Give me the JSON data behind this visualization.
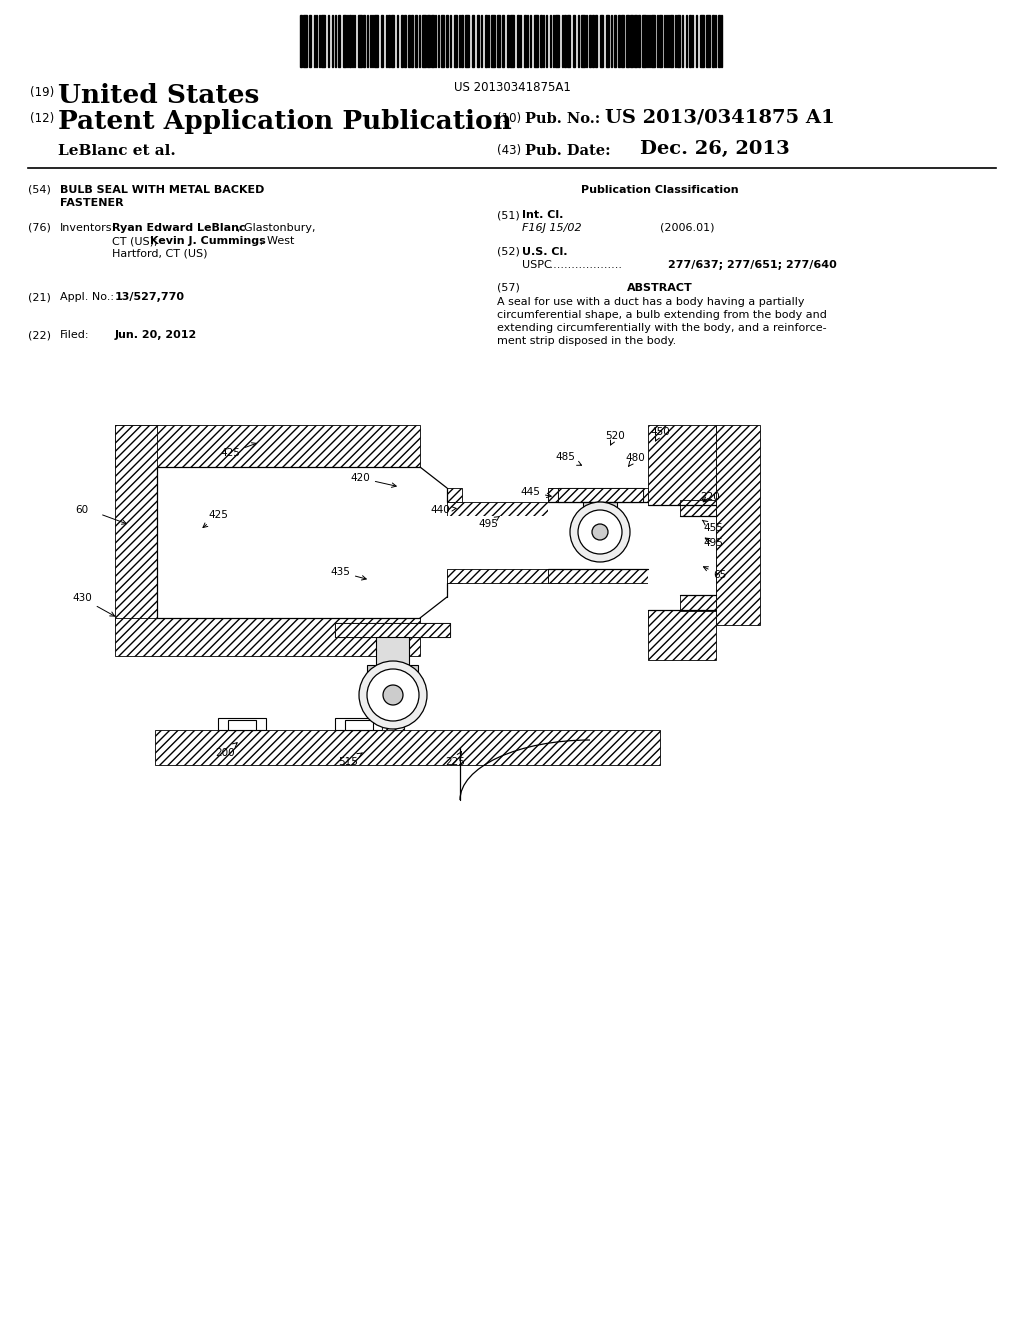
{
  "bg_color": "#ffffff",
  "barcode_text": "US 20130341875A1",
  "header_country": "United States",
  "header_type": "Patent Application Publication",
  "pub_no_label": "Pub. No.: ",
  "pub_no": "US 2013/0341875 A1",
  "pub_date_label": "Pub. Date:",
  "pub_date": "Dec. 26, 2013",
  "applicant": "LeBlanc et al.",
  "pub_class_header": "Publication Classification",
  "int_cl_code": "F16J 15/02",
  "int_cl_year": "(2006.01)",
  "uspc_value": "277/637; 277/651; 277/640",
  "abstract_text": "A seal for use with a duct has a body having a partially circumferential shape, a bulb extending from the body and extending circumferentially with the body, and a reinforce-ment strip disposed in the body.",
  "lc": "#000000",
  "lw": 1.0,
  "hatch": "////"
}
